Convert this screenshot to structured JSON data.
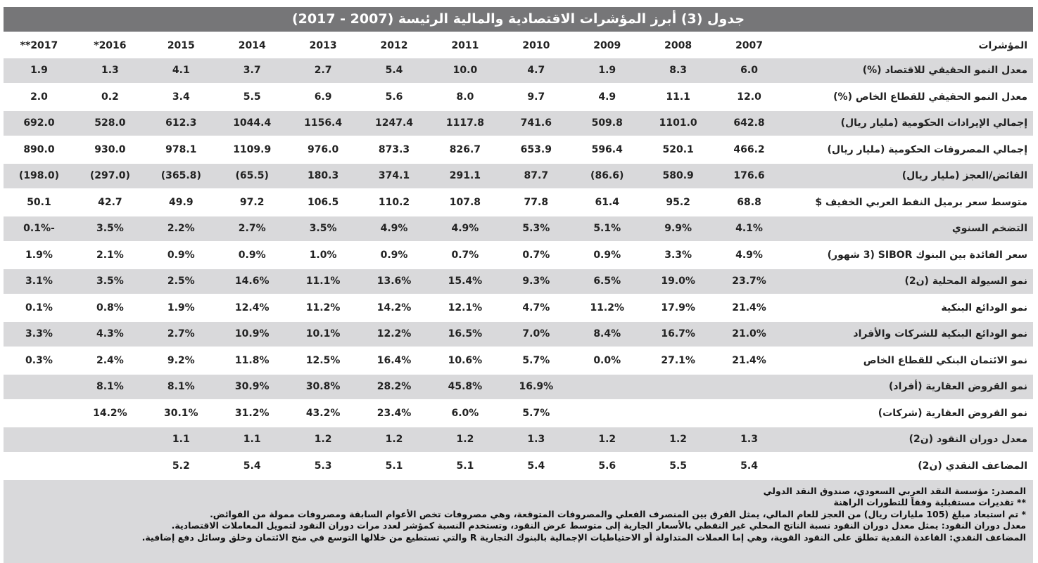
{
  "title": "جدول (3) أبرز المؤشرات الاقتصادية والمالية الرئيسة (2007 - 2017)",
  "header": {
    "label": "المؤشرات",
    "years": [
      "2007",
      "2008",
      "2009",
      "2010",
      "2011",
      "2012",
      "2013",
      "2014",
      "2015",
      "2016*",
      "2017**"
    ]
  },
  "rows": [
    {
      "label": "معدل النمو الحقيقي للاقتصاد  (%)",
      "values": [
        "6.0",
        "8.3",
        "1.9",
        "4.7",
        "10.0",
        "5.4",
        "2.7",
        "3.7",
        "4.1",
        "1.3",
        "1.9"
      ]
    },
    {
      "label": "معدل النمو الحقيقي للقطاع الخاص  (%)",
      "values": [
        "12.0",
        "11.1",
        "4.9",
        "9.7",
        "8.0",
        "5.6",
        "6.9",
        "5.5",
        "3.4",
        "0.2",
        "2.0"
      ]
    },
    {
      "label": "إجمالي الإيرادات الحكومية (مليار ريال)",
      "values": [
        "642.8",
        "1101.0",
        "509.8",
        "741.6",
        "1117.8",
        "1247.4",
        "1156.4",
        "1044.4",
        "612.3",
        "528.0",
        "692.0"
      ]
    },
    {
      "label": "إجمالي المصروفات الحكومية (مليار ريال)",
      "values": [
        "466.2",
        "520.1",
        "596.4",
        "653.9",
        "826.7",
        "873.3",
        "976.0",
        "1109.9",
        "978.1",
        "930.0",
        "890.0"
      ]
    },
    {
      "label": "الفائض/العجز (مليار ريال)",
      "values": [
        "176.6",
        "580.9",
        "(86.6)",
        "87.7",
        "291.1",
        "374.1",
        "180.3",
        "(65.5)",
        "(365.8)",
        "(297.0)",
        "(198.0)"
      ]
    },
    {
      "label": "متوسط سعر برميل النفط العربي الخفيف $",
      "values": [
        "68.8",
        "95.2",
        "61.4",
        "77.8",
        "107.8",
        "110.2",
        "106.5",
        "97.2",
        "49.9",
        "42.7",
        "50.1"
      ]
    },
    {
      "label": "التضخم السنوي",
      "values": [
        "4.1%",
        "9.9%",
        "5.1%",
        "5.3%",
        "4.9%",
        "4.9%",
        "3.5%",
        "2.7%",
        "2.2%",
        "3.5%",
        "-0.1%"
      ]
    },
    {
      "label": "سعر الفائدة بين البنوك SIBOR (3 شهور)",
      "values": [
        "4.9%",
        "3.3%",
        "0.9%",
        "0.7%",
        "0.7%",
        "0.9%",
        "1.0%",
        "0.9%",
        "0.9%",
        "2.1%",
        "1.9%"
      ]
    },
    {
      "label": "نمو السيولة المحلية (ن2)",
      "values": [
        "23.7%",
        "19.0%",
        "6.5%",
        "9.3%",
        "15.4%",
        "13.6%",
        "11.1%",
        "14.6%",
        "2.5%",
        "3.5%",
        "3.1%"
      ]
    },
    {
      "label": "نمو الودائع البنكية",
      "values": [
        "21.4%",
        "17.9%",
        "11.2%",
        "4.7%",
        "12.1%",
        "14.2%",
        "11.2%",
        "12.4%",
        "1.9%",
        "0.8%",
        "0.1%"
      ]
    },
    {
      "label": "نمو الودائع البنكية للشركات والأفراد",
      "values": [
        "21.0%",
        "16.7%",
        "8.4%",
        "7.0%",
        "16.5%",
        "12.2%",
        "10.1%",
        "10.9%",
        "2.7%",
        "4.3%",
        "3.3%"
      ]
    },
    {
      "label": "نمو الائتمان البنكي للقطاع الخاص",
      "values": [
        "21.4%",
        "27.1%",
        "0.0%",
        "5.7%",
        "10.6%",
        "16.4%",
        "12.5%",
        "11.8%",
        "9.2%",
        "2.4%",
        "0.3%"
      ]
    },
    {
      "label": "نمو القروض العقارية (أفراد)",
      "values": [
        "",
        "",
        "",
        "16.9%",
        "45.8%",
        "28.2%",
        "30.8%",
        "30.9%",
        "8.1%",
        "8.1%",
        ""
      ]
    },
    {
      "label": "نمو القروض العقارية (شركات)",
      "values": [
        "",
        "",
        "",
        "5.7%",
        "6.0%",
        "23.4%",
        "43.2%",
        "31.2%",
        "30.1%",
        "14.2%",
        ""
      ]
    },
    {
      "label": "معدل دوران النقود (ن2)",
      "values": [
        "1.3",
        "1.2",
        "1.2",
        "1.3",
        "1.2",
        "1.2",
        "1.2",
        "1.1",
        "1.1",
        "",
        ""
      ]
    },
    {
      "label": "المضاعف النقدي (ن2)",
      "values": [
        "5.4",
        "5.5",
        "5.6",
        "5.4",
        "5.1",
        "5.1",
        "5.3",
        "5.4",
        "5.2",
        "",
        ""
      ]
    }
  ],
  "footnotes": [
    "المصدر: مؤسسة النقد العربي السعودي، صندوق النقد الدولي",
    "** تقديرات مستقبلية وفقاً للتطورات الراهنة",
    "* تم استبعاد مبلغ (105 مليارات ريال) من العجز للعام المالي، يمثل الفرق بين المنصرف الفعلي والمصروفات المتوقعة، وهي مصروفات تخص الأعوام السابقة ومصروفات ممولة من الفوائض.",
    "معدل دوران النقود: يمثل معدل دوران النقود نسبة الناتج المحلي غير النفطي بالأسعار الجارية إلى متوسط عرض النقود، وتستخدم النسبة كمؤشر لعدد مرات دوران النقود لتمويل المعاملات الاقتصادية.",
    "المضاعف النقدي: القاعدة النقدية تطلق على النقود القوية، وهي إما العملات المتداولة أو الاحتياطيات الإجمالية بالبنوك التجارية R والتي تستطيع من خلالها التوسع في منح الائتمان وخلق وسائل دفع إضافية."
  ]
}
